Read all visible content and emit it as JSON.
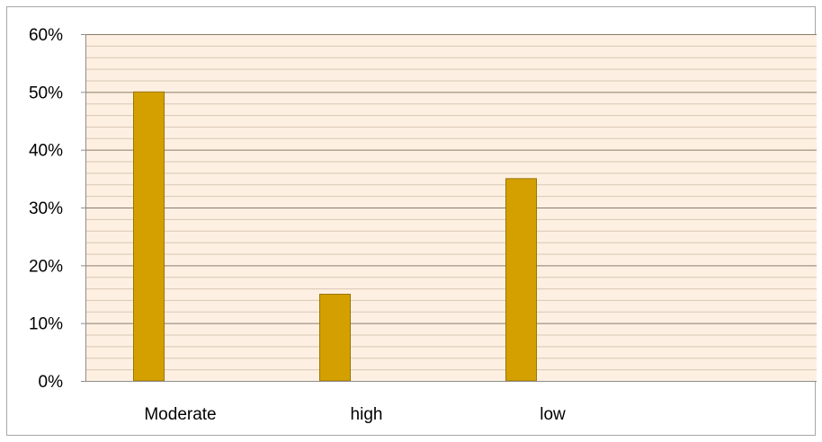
{
  "chart_data": {
    "type": "bar",
    "title": "",
    "xlabel": "",
    "ylabel": "",
    "categories": [
      "Moderate",
      "high",
      "low"
    ],
    "values": [
      50,
      15,
      35
    ],
    "value_format": "percent",
    "ylim": [
      0,
      60
    ],
    "y_major_ticks": [
      "0%",
      "10%",
      "20%",
      "30%",
      "40%",
      "50%",
      "60%"
    ],
    "y_major_step": 10,
    "y_minor_step": 2,
    "grid": true,
    "legend": "none",
    "colors": {
      "bar_fill": "#D4A000",
      "bar_stroke": "#9A7400",
      "plot_background": "#FDF0E2",
      "major_gridline": "#8C7A6A",
      "minor_gridline": "#D9C6B4",
      "axis_line": "#8C8C8C"
    }
  }
}
